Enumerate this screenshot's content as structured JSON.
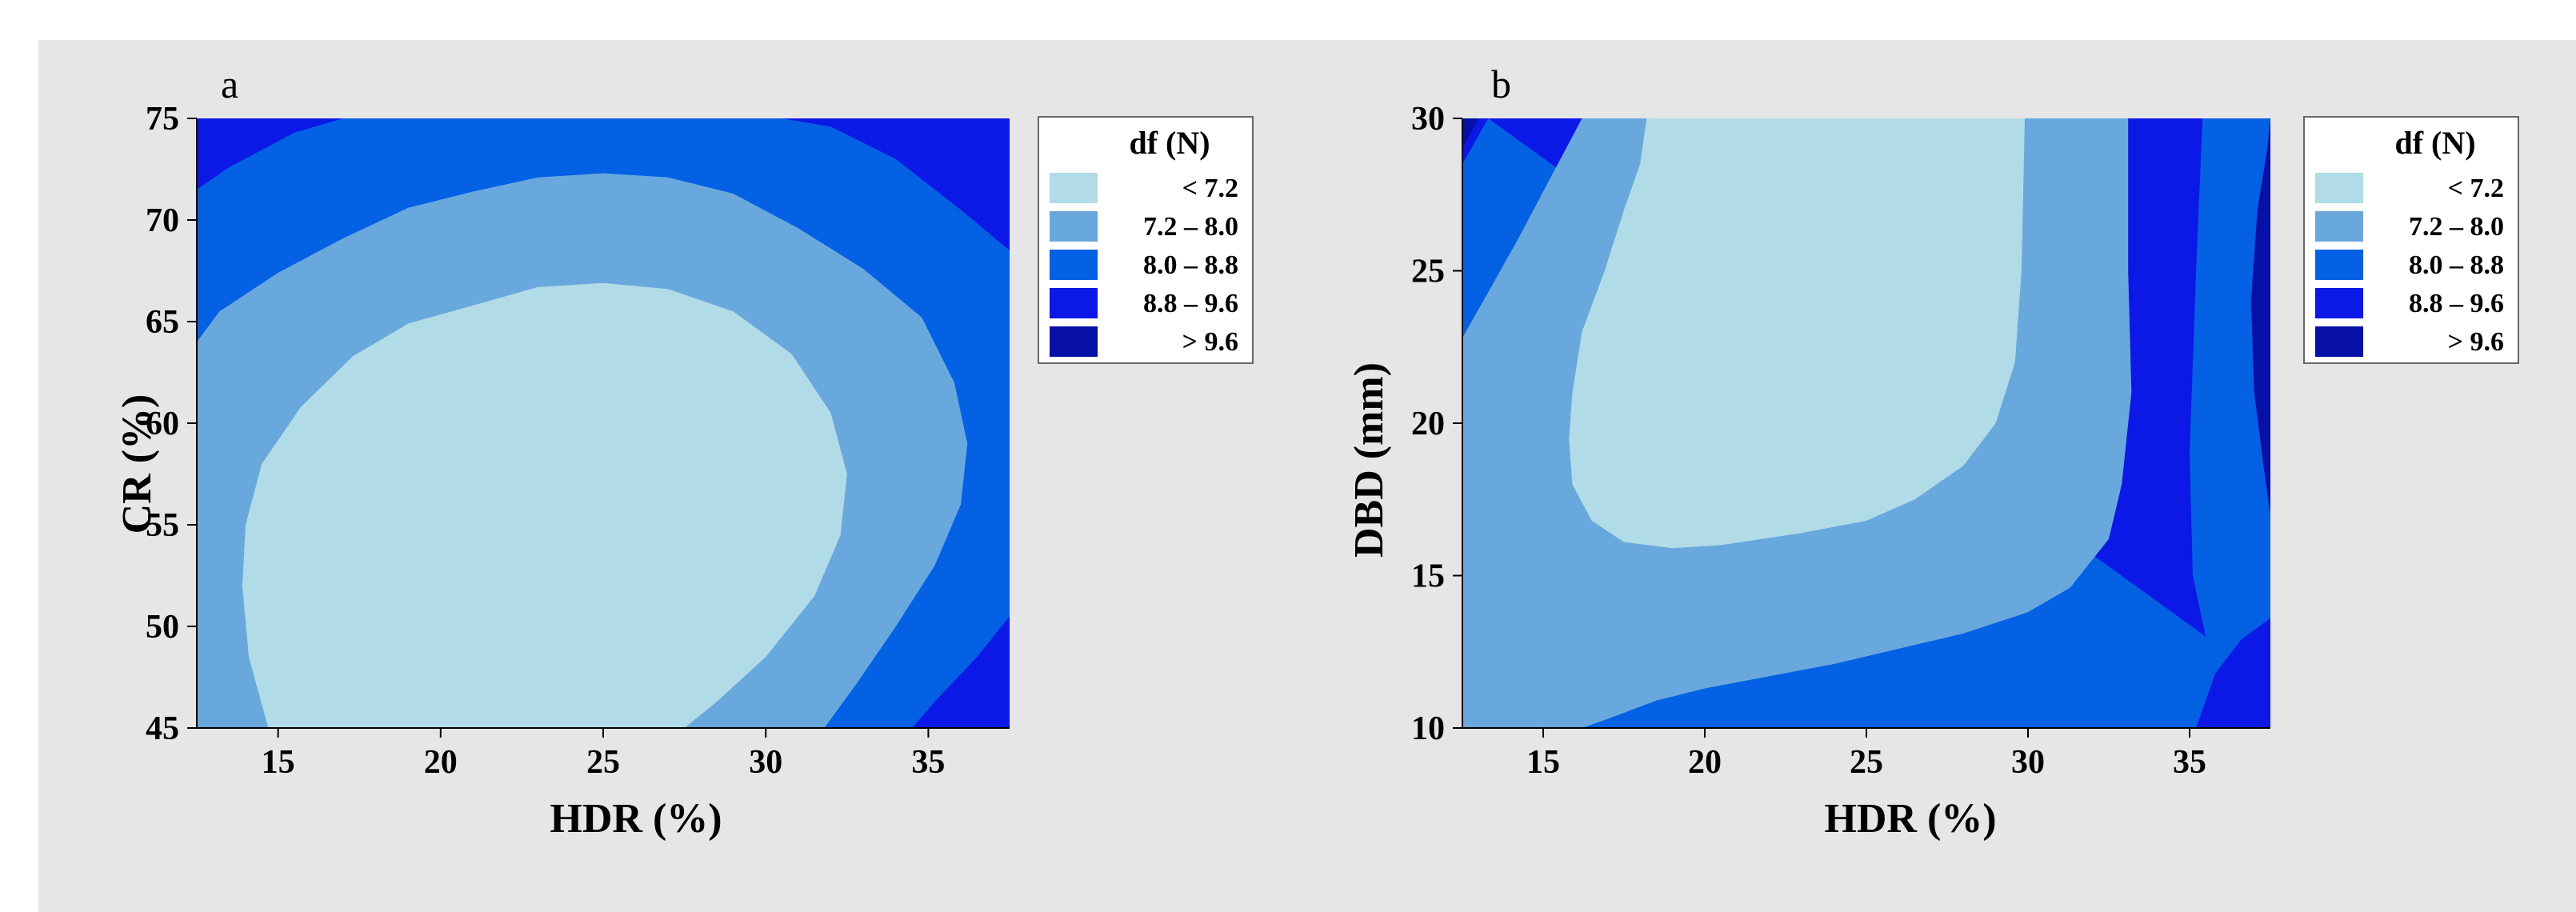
{
  "chart_data": [
    {
      "type": "contour",
      "panel_label": "a",
      "xlabel": "HDR (%)",
      "ylabel": "CR (%)",
      "xlim": [
        12.5,
        37.5
      ],
      "ylim": [
        45,
        75
      ],
      "xticks": [
        15,
        20,
        25,
        30,
        35
      ],
      "yticks": [
        45,
        50,
        55,
        60,
        65,
        70,
        75
      ],
      "legend": {
        "title": "df (N)",
        "position": "right",
        "entries": [
          {
            "label": "< 7.2",
            "color": "#b2dbe8"
          },
          {
            "label": "7.2 – 8.0",
            "color": "#68a8dc"
          },
          {
            "label": "8.0 – 8.8",
            "color": "#0461e3"
          },
          {
            "label": "8.8 – 9.6",
            "color": "#0b18e6"
          },
          {
            "label": "> 9.6",
            "color": "#0710a6"
          }
        ]
      },
      "regions": [
        {
          "level": "8.8 – 9.6",
          "color": "#0b18e6",
          "polygon": [
            [
              12.5,
              75
            ],
            [
              37.5,
              75
            ],
            [
              37.5,
              45
            ],
            [
              12.5,
              45
            ]
          ]
        },
        {
          "level": "8.0 – 8.8",
          "color": "#0461e3",
          "polygon": [
            [
              12.5,
              45
            ],
            [
              12.5,
              71.5
            ],
            [
              13.5,
              72.6
            ],
            [
              15.5,
              74.3
            ],
            [
              17,
              75
            ],
            [
              30.5,
              75
            ],
            [
              32,
              74.6
            ],
            [
              34,
              73
            ],
            [
              36,
              70.5
            ],
            [
              37.5,
              68.5
            ],
            [
              37.5,
              50.5
            ],
            [
              36.5,
              48.5
            ],
            [
              35.2,
              46.3
            ],
            [
              34.5,
              45
            ]
          ]
        },
        {
          "level": "7.2 – 8.0",
          "color": "#68a8dc",
          "polygon": [
            [
              12.5,
              45
            ],
            [
              12.5,
              64
            ],
            [
              13.2,
              65.5
            ],
            [
              15,
              67.4
            ],
            [
              17,
              69.1
            ],
            [
              19,
              70.6
            ],
            [
              21,
              71.4
            ],
            [
              23,
              72.1
            ],
            [
              25,
              72.3
            ],
            [
              27,
              72.1
            ],
            [
              29,
              71.3
            ],
            [
              31,
              69.6
            ],
            [
              33,
              67.6
            ],
            [
              34.8,
              65.2
            ],
            [
              35.8,
              62
            ],
            [
              36.2,
              59
            ],
            [
              36,
              56
            ],
            [
              35.2,
              53
            ],
            [
              34,
              50
            ],
            [
              32.8,
              47.2
            ],
            [
              31.8,
              45
            ]
          ]
        },
        {
          "level": "< 7.2",
          "color": "#b2dbe8",
          "polygon": [
            [
              14.7,
              45
            ],
            [
              14.1,
              48.5
            ],
            [
              13.9,
              52
            ],
            [
              14,
              55
            ],
            [
              14.5,
              58
            ],
            [
              15.7,
              60.8
            ],
            [
              17.3,
              63.3
            ],
            [
              19,
              64.9
            ],
            [
              21,
              65.8
            ],
            [
              23,
              66.7
            ],
            [
              25,
              66.9
            ],
            [
              27,
              66.6
            ],
            [
              29,
              65.5
            ],
            [
              30.8,
              63.4
            ],
            [
              32,
              60.5
            ],
            [
              32.5,
              57.5
            ],
            [
              32.3,
              54.5
            ],
            [
              31.5,
              51.5
            ],
            [
              30,
              48.5
            ],
            [
              28.5,
              46.3
            ],
            [
              27.5,
              45
            ]
          ]
        }
      ]
    },
    {
      "type": "contour",
      "panel_label": "b",
      "xlabel": "HDR (%)",
      "ylabel": "DBD (mm)",
      "xlim": [
        12.5,
        37.5
      ],
      "ylim": [
        10,
        30
      ],
      "xticks": [
        15,
        20,
        25,
        30,
        35
      ],
      "yticks": [
        10,
        15,
        20,
        25,
        30
      ],
      "legend": {
        "title": "df (N)",
        "position": "right",
        "entries": [
          {
            "label": "< 7.2",
            "color": "#b2dbe8"
          },
          {
            "label": "7.2 – 8.0",
            "color": "#68a8dc"
          },
          {
            "label": "8.0 – 8.8",
            "color": "#0461e3"
          },
          {
            "label": "8.8 – 9.6",
            "color": "#0b18e6"
          },
          {
            "label": "> 9.6",
            "color": "#0710a6"
          }
        ]
      },
      "regions": [
        {
          "level": "8.8 – 9.6",
          "color": "#0b18e6",
          "polygon": [
            [
              12.5,
              10
            ],
            [
              37.5,
              10
            ],
            [
              37.5,
              30
            ],
            [
              12.5,
              30
            ]
          ]
        },
        {
          "level": "8.0 – 8.8",
          "color": "#0461e3",
          "polygon": [
            [
              13.3,
              30
            ],
            [
              12.5,
              28.5
            ],
            [
              12.5,
              10
            ],
            [
              35.2,
              10
            ],
            [
              35.8,
              11.8
            ],
            [
              36.6,
              12.9
            ],
            [
              37.5,
              13.6
            ],
            [
              37.5,
              30
            ],
            [
              35.4,
              30
            ],
            [
              35.2,
              25
            ],
            [
              35,
              19
            ],
            [
              35.1,
              15
            ],
            [
              35.5,
              13
            ]
          ]
        },
        {
          "level": "7.2 – 8.0",
          "color": "#68a8dc",
          "polygon": [
            [
              12.5,
              10
            ],
            [
              12.5,
              22.8
            ],
            [
              13.3,
              24.3
            ],
            [
              14.2,
              26
            ],
            [
              15,
              27.6
            ],
            [
              16.2,
              30
            ],
            [
              33.1,
              30
            ],
            [
              33.1,
              25
            ],
            [
              33.2,
              21
            ],
            [
              32.9,
              18
            ],
            [
              32.5,
              16.2
            ],
            [
              31.3,
              14.6
            ],
            [
              30,
              13.8
            ],
            [
              28,
              13.1
            ],
            [
              26,
              12.6
            ],
            [
              24,
              12.1
            ],
            [
              22,
              11.7
            ],
            [
              20,
              11.3
            ],
            [
              18.5,
              10.9
            ],
            [
              17,
              10.3
            ],
            [
              16.2,
              10
            ]
          ]
        },
        {
          "level": "< 7.2",
          "color": "#b2dbe8",
          "polygon": [
            [
              18.2,
              30
            ],
            [
              29.9,
              30
            ],
            [
              29.8,
              25
            ],
            [
              29.6,
              22
            ],
            [
              29,
              20
            ],
            [
              28,
              18.6
            ],
            [
              26.5,
              17.5
            ],
            [
              25,
              16.8
            ],
            [
              23,
              16.4
            ],
            [
              20.5,
              16
            ],
            [
              19,
              15.9
            ],
            [
              17.5,
              16.1
            ],
            [
              16.5,
              16.8
            ],
            [
              15.9,
              18
            ],
            [
              15.8,
              19.5
            ],
            [
              15.9,
              21
            ],
            [
              16.2,
              23
            ],
            [
              16.9,
              25
            ],
            [
              17.5,
              27
            ],
            [
              18,
              28.5
            ]
          ]
        },
        {
          "level": "> 9.6",
          "color": "#0710a6",
          "polygon": [
            [
              37.5,
              30
            ],
            [
              37.5,
              17
            ],
            [
              37.3,
              18.5
            ],
            [
              37,
              21
            ],
            [
              36.9,
              24
            ],
            [
              37.1,
              27
            ],
            [
              37.4,
              29
            ]
          ]
        },
        {
          "level": "> 9.6",
          "color": "#0710a6",
          "polygon": [
            [
              12.5,
              30
            ],
            [
              13,
              30
            ],
            [
              12.5,
              29
            ]
          ]
        }
      ]
    }
  ]
}
